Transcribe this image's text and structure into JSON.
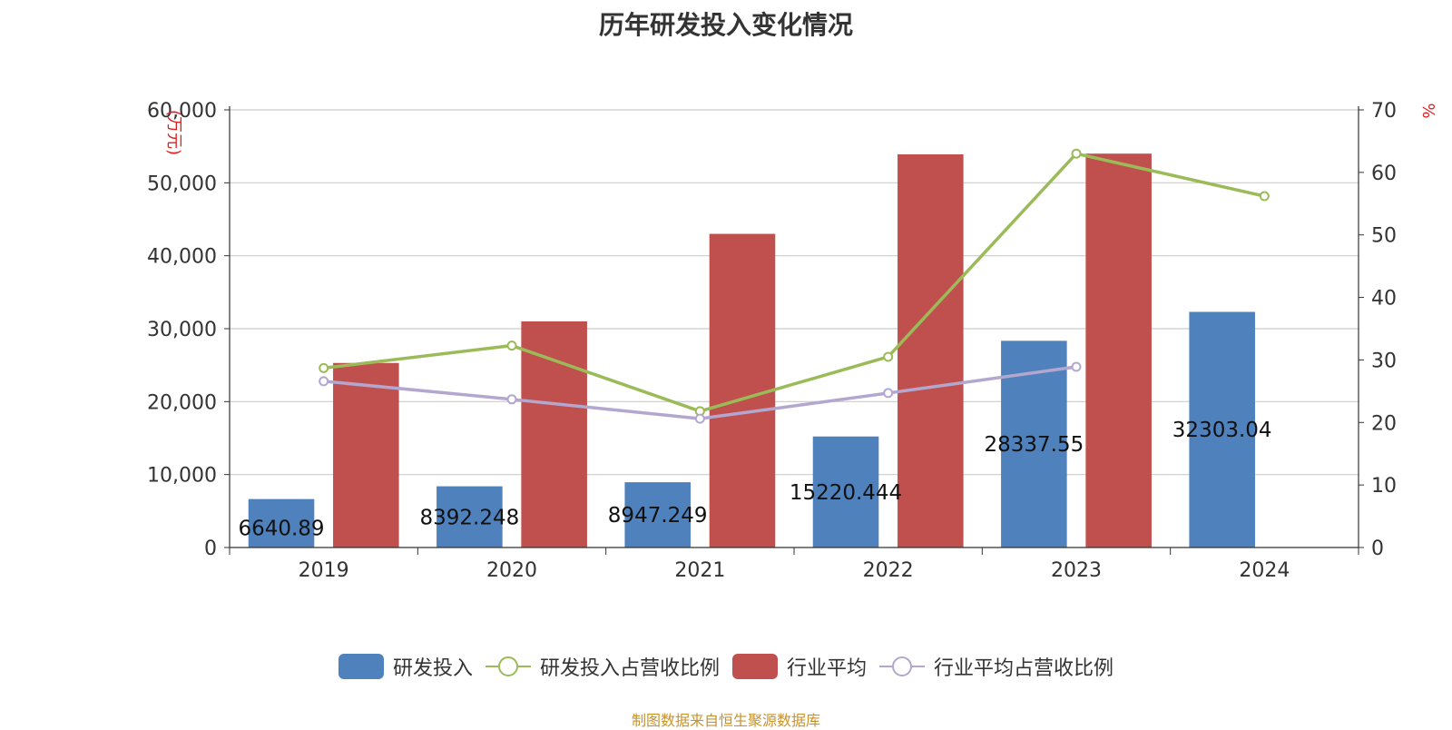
{
  "title": "历年研发投入变化情况",
  "source": "制图数据来自恒生聚源数据库",
  "chart_data": {
    "type": "bar",
    "categories": [
      "2019",
      "2020",
      "2021",
      "2022",
      "2023",
      "2024"
    ],
    "left_axis": {
      "unit": "(万元)",
      "ylim": [
        0,
        60000
      ],
      "ticks": [
        "0",
        "10,000",
        "20,000",
        "30,000",
        "40,000",
        "50,000",
        "60,000"
      ],
      "tick_values": [
        0,
        10000,
        20000,
        30000,
        40000,
        50000,
        60000
      ]
    },
    "right_axis": {
      "unit": "%",
      "ylim": [
        0,
        70
      ],
      "ticks": [
        "0",
        "10",
        "20",
        "30",
        "40",
        "50",
        "60",
        "70"
      ],
      "tick_values": [
        0,
        10,
        20,
        30,
        40,
        50,
        60,
        70
      ]
    },
    "grid": true,
    "legend_position": "bottom",
    "series": [
      {
        "name": "研发投入",
        "kind": "bar",
        "axis": "left",
        "color": "#4f81bd",
        "values": [
          6640.89,
          8392.248,
          8947.249,
          15220.444,
          28337.55,
          32303.04
        ],
        "labels": [
          "6640.89",
          "8392.248",
          "8947.249",
          "15220.444",
          "28337.55",
          "32303.04"
        ]
      },
      {
        "name": "研发投入占营收比例",
        "kind": "line",
        "axis": "right",
        "color": "#9bbb59",
        "values": [
          28.7,
          32.3,
          21.8,
          30.5,
          63.0,
          56.2
        ]
      },
      {
        "name": "行业平均",
        "kind": "bar",
        "axis": "left",
        "color": "#c0504d",
        "values": [
          25300,
          31000,
          43000,
          53900,
          54000,
          null
        ]
      },
      {
        "name": "行业平均占营收比例",
        "kind": "line",
        "axis": "right",
        "color": "#b3a6cf",
        "values": [
          26.6,
          23.7,
          20.6,
          24.7,
          28.9,
          null
        ]
      }
    ]
  }
}
